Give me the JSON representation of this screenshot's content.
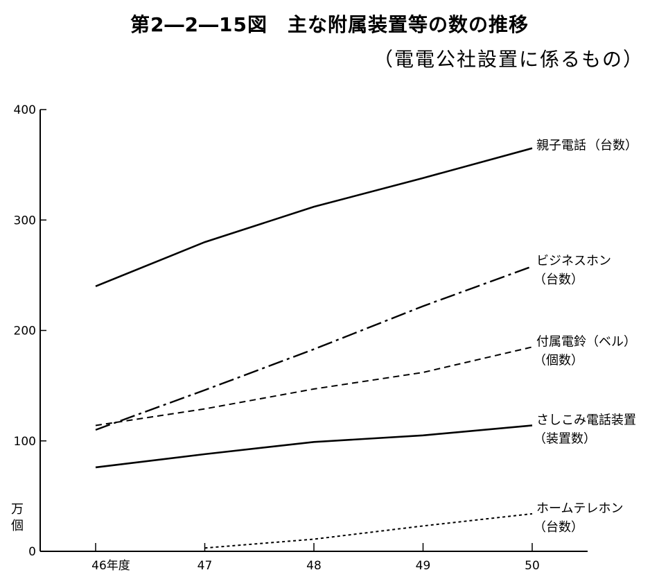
{
  "chart_data": {
    "type": "line",
    "title": "第2―2―15図　主な附属装置等の数の推移",
    "subtitle": "（電電公社設置に係るもの）",
    "ylabel": "万個",
    "xlabel": "",
    "categories": [
      "46年度",
      "47",
      "48",
      "49",
      "50"
    ],
    "x": [
      46,
      47,
      48,
      49,
      50
    ],
    "ylim": [
      0,
      400
    ],
    "yticks": [
      0,
      100,
      200,
      300,
      400
    ],
    "grid": false,
    "series": [
      {
        "name": "親子電話",
        "unit": "（台数）",
        "style": "solid",
        "values": [
          240,
          280,
          312,
          338,
          365
        ]
      },
      {
        "name": "ビジネスホン",
        "unit": "（台数）",
        "style": "dashdot",
        "values": [
          110,
          146,
          183,
          222,
          258
        ]
      },
      {
        "name": "付属電鈴（ベル）",
        "unit": "（個数）",
        "style": "dashed",
        "values": [
          114,
          129,
          147,
          162,
          185
        ]
      },
      {
        "name": "さしこみ電話装置",
        "unit": "（装置数）",
        "style": "solid",
        "values": [
          76,
          88,
          99,
          105,
          114
        ]
      },
      {
        "name": "ホームテレホン",
        "unit": "（台数）",
        "style": "dotted",
        "values": [
          null,
          3,
          11,
          23,
          34
        ]
      }
    ]
  }
}
